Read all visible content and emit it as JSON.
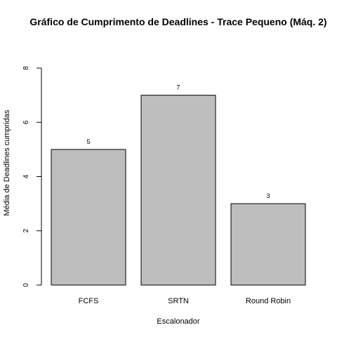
{
  "chart_data": {
    "type": "bar",
    "title": "Gráfico de Cumprimento de Deadlines - Trace Pequeno (Máq. 2)",
    "xlabel": "Escalonador",
    "ylabel": "Média de Deadlines cumpridas",
    "categories": [
      "FCFS",
      "SRTN",
      "Round Robin"
    ],
    "values": [
      5,
      7,
      3
    ],
    "data_labels": [
      "5",
      "7",
      "3"
    ],
    "ylim": [
      0,
      8
    ],
    "yticks": [
      0,
      2,
      4,
      6,
      8
    ],
    "ytick_labels": [
      "0",
      "2",
      "4",
      "6",
      "8"
    ],
    "grid": false,
    "bar_color": "#bebebe",
    "bar_edge_color": "#000000"
  }
}
